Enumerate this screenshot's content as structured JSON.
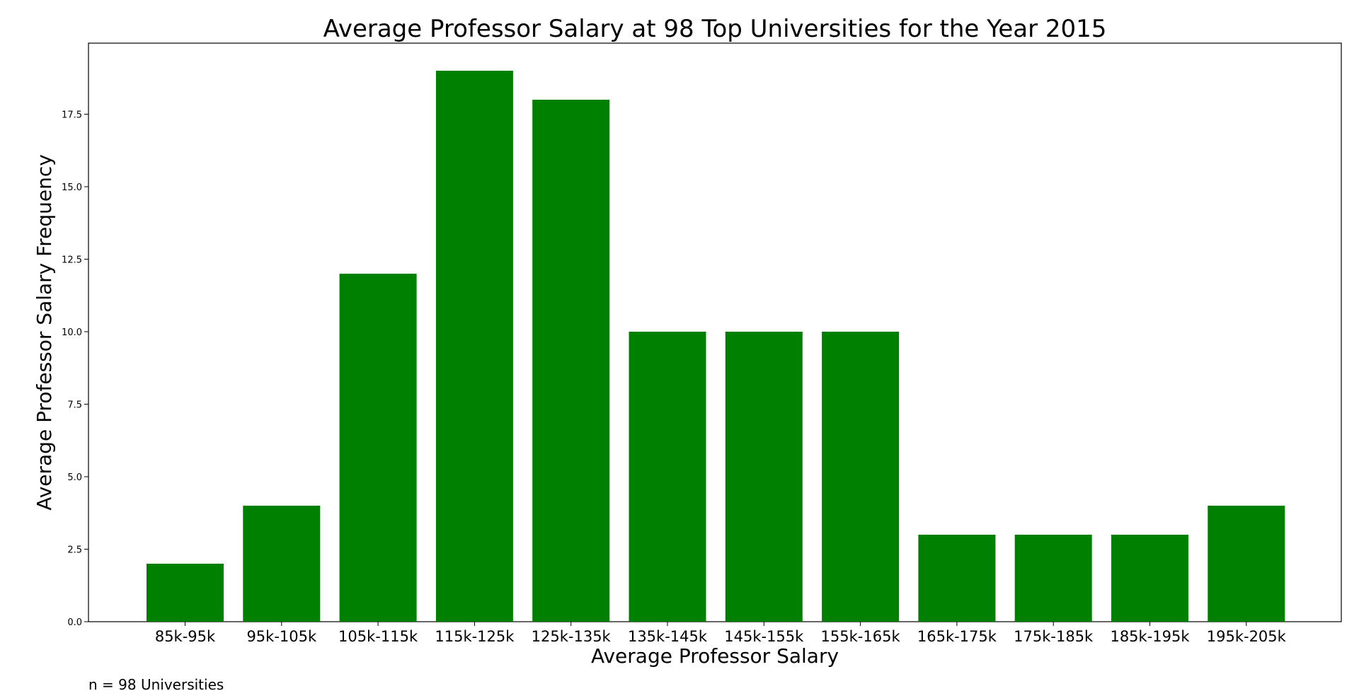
{
  "chart_data": {
    "type": "bar",
    "title": "Average Professor Salary at 98 Top Universities for the Year 2015",
    "xlabel": "Average Professor Salary",
    "ylabel": "Average Professor Salary Frequency",
    "categories": [
      "85k-95k",
      "95k-105k",
      "105k-115k",
      "115k-125k",
      "125k-135k",
      "135k-145k",
      "145k-155k",
      "155k-165k",
      "165k-175k",
      "175k-185k",
      "185k-195k",
      "195k-205k"
    ],
    "values": [
      2,
      4,
      12,
      19,
      18,
      10,
      10,
      10,
      3,
      3,
      3,
      4
    ],
    "ylim": [
      0,
      19.95
    ],
    "yticks": [
      "0.0",
      "2.5",
      "5.0",
      "7.5",
      "10.0",
      "12.5",
      "15.0",
      "17.5"
    ],
    "bar_color": "#008000",
    "grid": false,
    "legend": "none",
    "footnote": "n = 98 Universities"
  }
}
